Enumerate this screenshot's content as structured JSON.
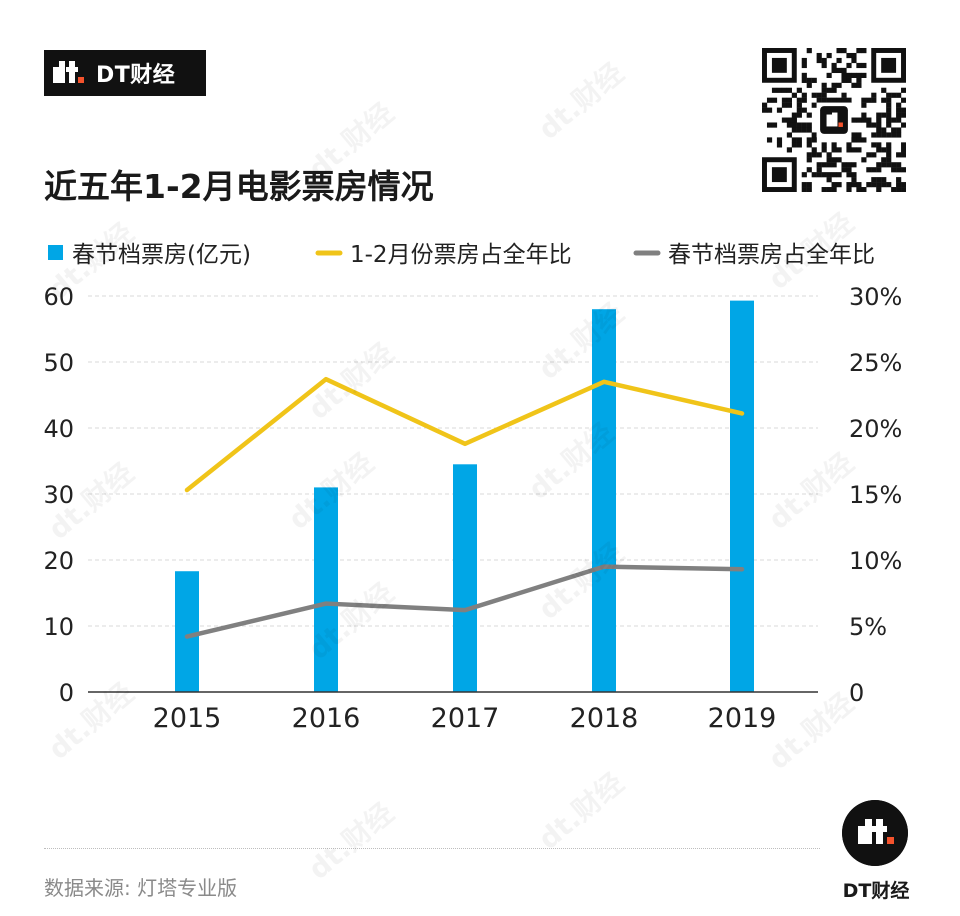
{
  "brand": {
    "name": "DT财经",
    "mark": "dt"
  },
  "title": "近五年1-2月电影票房情况",
  "source": "数据来源: 灯塔专业版",
  "watermark_text": "dt.财经",
  "colors": {
    "bar": "#00a6e6",
    "line_jan_feb": "#f0c419",
    "line_spring": "#808080",
    "accent_dot": "#f5532d"
  },
  "chart_data": {
    "type": "bar",
    "categories": [
      "2015",
      "2016",
      "2017",
      "2018",
      "2019"
    ],
    "series": [
      {
        "name": "春节档票房(亿元)",
        "type": "bar",
        "axis": "left",
        "values": [
          18.3,
          31.0,
          34.5,
          58.0,
          59.3
        ]
      },
      {
        "name": "1-2月份票房占全年比",
        "type": "line",
        "axis": "right",
        "values": [
          15.3,
          23.7,
          18.8,
          23.5,
          21.1
        ]
      },
      {
        "name": "春节档票房占全年比",
        "type": "line",
        "axis": "right",
        "values": [
          4.2,
          6.7,
          6.2,
          9.5,
          9.3
        ]
      }
    ],
    "y_left": {
      "ticks": [
        "0",
        "10",
        "20",
        "30",
        "40",
        "50",
        "60"
      ],
      "ylim": [
        0,
        60
      ]
    },
    "y_right": {
      "ticks": [
        "0",
        "5%",
        "10%",
        "15%",
        "20%",
        "25%",
        "30%"
      ],
      "ylim": [
        0,
        30
      ]
    },
    "grid": true,
    "legend_position": "top"
  }
}
